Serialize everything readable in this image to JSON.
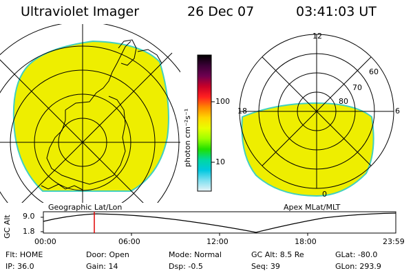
{
  "header": {
    "title": "Ultraviolet Imager",
    "date": "26 Dec 07",
    "time": "03:41:03 UT"
  },
  "left_map": {
    "caption": "Geographic Lat/Lon"
  },
  "colorbar": {
    "label": "photon cm⁻²s⁻¹",
    "ticks": [
      "100",
      "10"
    ],
    "colors": [
      "#000000",
      "#3b0036",
      "#6e0050",
      "#c80028",
      "#ff2020",
      "#ff8800",
      "#ffd700",
      "#e8ff00",
      "#9cff00",
      "#20e000",
      "#00d8a0",
      "#00c8e0",
      "#80e0f0",
      "#e8f4f8"
    ]
  },
  "right_map": {
    "caption": "Apex MLat/MLT",
    "mlt_labels": {
      "top": "12",
      "left": "18",
      "right": "6",
      "bottom": "0"
    },
    "lat_labels": [
      "60",
      "70",
      "80"
    ]
  },
  "altitude_plot": {
    "ylabel": "GC Alt",
    "yticks": [
      "9.0",
      "1.8"
    ],
    "xticks": [
      "00:00",
      "06:00",
      "12:00",
      "18:00",
      "23:59"
    ]
  },
  "info": {
    "flt": "Flt: HOME",
    "ip": "IP: 36.0",
    "door": "Door: Open",
    "gain": "Gain: 14",
    "mode": "Mode: Normal",
    "dsp": "Dsp:    -0.5",
    "gcalt": "GC Alt: 8.5 Re",
    "seq": "Seq: 39",
    "glat": "GLat: -80.0",
    "glon": "GLon: 293.9"
  },
  "colors": {
    "emission": "#eeee00",
    "rim": "#40d0c0",
    "marker": "#e00000"
  }
}
